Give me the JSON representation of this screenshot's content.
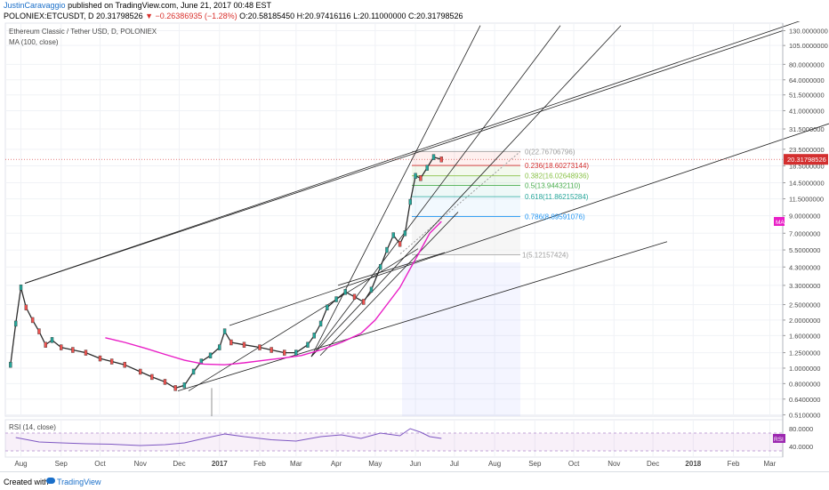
{
  "header": {
    "author": "JustinCaravaggio",
    "published": "published on TradingView.com, June 21, 2017 00:48 EST",
    "symbol": "POLONIEX:ETCUSDT, D",
    "last": "20.31798526",
    "change": "▼ −0.26386935 (−1.28%)",
    "ohlc": "O:20.58185450 H:20.97416116 L:20.11000000 C:20.31798526"
  },
  "chart_data": {
    "type": "line",
    "title": "Ethereum Classic / Tether USD, D, POLONIEX",
    "indicator_label": "MA (100, close)",
    "x_ticks": [
      "Aug",
      "Sep",
      "Oct",
      "Nov",
      "Dec",
      "2017",
      "Feb",
      "Mar",
      "Apr",
      "May",
      "Jun",
      "Jul",
      "Aug",
      "Sep",
      "Oct",
      "Nov",
      "Dec",
      "2018",
      "Feb",
      "Mar"
    ],
    "y_scale": "log",
    "y_ticks": [
      "130.0000000",
      "105.0000000",
      "80.0000000",
      "64.0000000",
      "51.5000000",
      "41.0000000",
      "31.5000000",
      "23.5000000",
      "18.5000000",
      "14.5000000",
      "11.5000000",
      "9.0000000",
      "7.0000000",
      "5.5000000",
      "4.3000000",
      "3.3000000",
      "2.5000000",
      "2.0000000",
      "1.6000000",
      "1.2500000",
      "1.0000000",
      "0.8000000",
      "0.6400000",
      "0.5100000"
    ],
    "last_price_label": "20.31798526",
    "ma_badge": "MA",
    "series": [
      {
        "name": "ETCUSDT",
        "x": [
          "2016-07-24",
          "2016-07-28",
          "2016-08-01",
          "2016-08-05",
          "2016-08-10",
          "2016-08-15",
          "2016-08-20",
          "2016-08-25",
          "2016-09-01",
          "2016-09-10",
          "2016-09-20",
          "2016-10-01",
          "2016-10-10",
          "2016-10-20",
          "2016-11-01",
          "2016-11-10",
          "2016-11-20",
          "2016-11-28",
          "2016-12-05",
          "2016-12-12",
          "2016-12-18",
          "2016-12-25",
          "2017-01-01",
          "2017-01-05",
          "2017-01-10",
          "2017-01-20",
          "2017-02-01",
          "2017-02-10",
          "2017-02-20",
          "2017-03-01",
          "2017-03-10",
          "2017-03-15",
          "2017-03-20",
          "2017-03-25",
          "2017-04-01",
          "2017-04-08",
          "2017-04-15",
          "2017-04-22",
          "2017-04-28",
          "2017-05-05",
          "2017-05-10",
          "2017-05-15",
          "2017-05-20",
          "2017-05-24",
          "2017-05-28",
          "2017-06-01",
          "2017-06-05",
          "2017-06-10",
          "2017-06-15",
          "2017-06-21"
        ],
        "y": [
          1.05,
          1.9,
          3.2,
          2.4,
          2.0,
          1.7,
          1.4,
          1.5,
          1.35,
          1.3,
          1.25,
          1.15,
          1.1,
          1.05,
          0.95,
          0.88,
          0.82,
          0.75,
          0.78,
          0.95,
          1.1,
          1.2,
          1.35,
          1.7,
          1.45,
          1.4,
          1.35,
          1.3,
          1.25,
          1.25,
          1.4,
          1.6,
          1.9,
          2.4,
          2.7,
          3.0,
          2.8,
          2.6,
          3.1,
          4.3,
          5.5,
          6.8,
          6.0,
          7.0,
          11.0,
          16.0,
          15.5,
          18.0,
          21.0,
          20.32
        ]
      },
      {
        "name": "MA (100, close)",
        "x": [
          "2016-10-05",
          "2016-10-20",
          "2016-11-05",
          "2016-11-20",
          "2016-12-05",
          "2016-12-20",
          "2017-01-05",
          "2017-01-20",
          "2017-02-05",
          "2017-02-20",
          "2017-03-05",
          "2017-03-20",
          "2017-04-05",
          "2017-04-20",
          "2017-05-01",
          "2017-05-10",
          "2017-05-20",
          "2017-05-28",
          "2017-06-05",
          "2017-06-12",
          "2017-06-21"
        ],
        "y": [
          1.55,
          1.45,
          1.33,
          1.22,
          1.12,
          1.06,
          1.05,
          1.08,
          1.12,
          1.16,
          1.2,
          1.3,
          1.45,
          1.65,
          2.0,
          2.5,
          3.2,
          4.2,
          5.5,
          7.0,
          8.3
        ]
      }
    ],
    "fib_levels": [
      {
        "ratio": "0",
        "price": 22.76706796,
        "label": "0(22.76706796)"
      },
      {
        "ratio": "0.236",
        "price": 18.60273144,
        "label": "0.236(18.60273144)"
      },
      {
        "ratio": "0.382",
        "price": 16.02648936,
        "label": "0.382(16.02648936)"
      },
      {
        "ratio": "0.5",
        "price": 13.9443211,
        "label": "0.5(13.94432110)"
      },
      {
        "ratio": "0.618",
        "price": 11.86215284,
        "label": "0.618(11.86215284)"
      },
      {
        "ratio": "0.786",
        "price": 8.89591076,
        "label": "0.786(8.89591076)"
      },
      {
        "ratio": "1",
        "price": 5.12157424,
        "label": "1(5.12157424)"
      }
    ],
    "rsi": {
      "label": "RSI (14, close)",
      "y_ticks": [
        "80.0000",
        "40.0000"
      ],
      "badge": "RSI",
      "x": [
        "2016-07-28",
        "2016-08-15",
        "2016-09-01",
        "2016-09-20",
        "2016-10-10",
        "2016-11-01",
        "2016-11-20",
        "2016-12-05",
        "2016-12-20",
        "2017-01-05",
        "2017-01-20",
        "2017-02-10",
        "2017-03-01",
        "2017-03-20",
        "2017-04-05",
        "2017-04-20",
        "2017-05-05",
        "2017-05-20",
        "2017-05-28",
        "2017-06-05",
        "2017-06-12",
        "2017-06-21"
      ],
      "y": [
        60,
        50,
        48,
        46,
        45,
        42,
        44,
        48,
        58,
        68,
        62,
        55,
        52,
        62,
        66,
        58,
        70,
        64,
        80,
        72,
        62,
        58
      ]
    }
  },
  "footer": {
    "created_with": "Created with",
    "brand": "TradingView"
  }
}
